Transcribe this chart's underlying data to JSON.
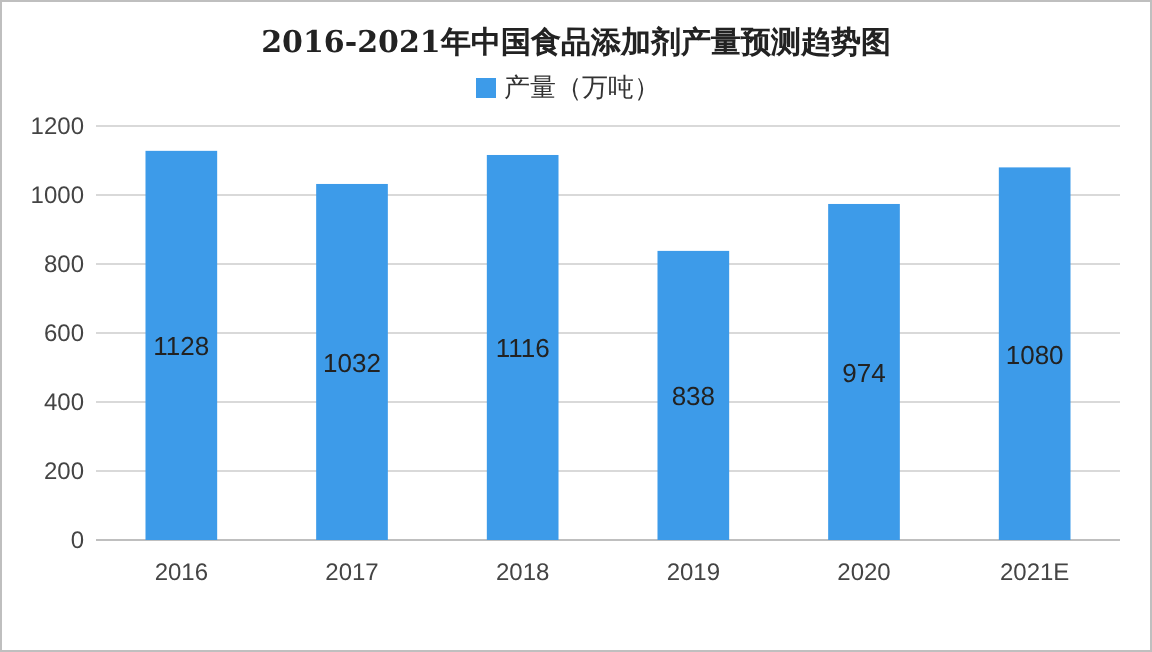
{
  "chart_data": {
    "type": "bar",
    "title": "2016-2021年中国食品添加剂产量预测趋势图",
    "categories": [
      "2016",
      "2017",
      "2018",
      "2019",
      "2020",
      "2021E"
    ],
    "series": [
      {
        "name": "产量（万吨）",
        "color": "#3d9be9",
        "values": [
          1128,
          1032,
          1116,
          838,
          974,
          1080
        ]
      }
    ],
    "ylim": [
      0,
      1200
    ],
    "yticks": [
      0,
      200,
      400,
      600,
      800,
      1000,
      1200
    ],
    "grid": "y",
    "legend": "top",
    "data_labels": true
  }
}
